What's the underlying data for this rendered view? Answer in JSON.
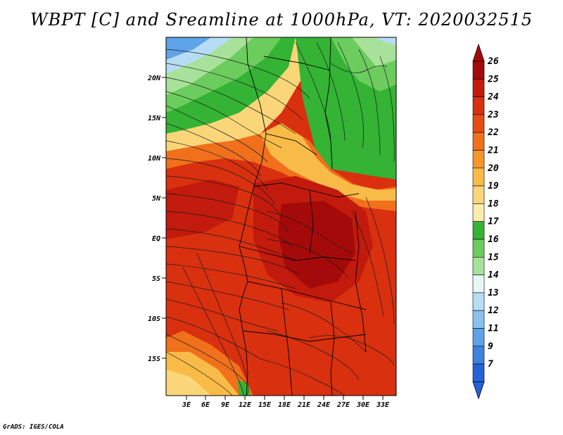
{
  "title": "WBPT [C] and Sreamline at 1000hPa, VT: 2020032515",
  "footer": "GrADS: IGES/COLA",
  "map": {
    "lat_labels": [
      "20N",
      "15N",
      "10N",
      "5N",
      "EQ",
      "5S",
      "10S",
      "15S"
    ],
    "lon_labels": [
      "3E",
      "6E",
      "9E",
      "12E",
      "15E",
      "18E",
      "21E",
      "24E",
      "27E",
      "30E",
      "33E"
    ]
  },
  "colorbar": {
    "labels": [
      "26",
      "25",
      "24",
      "23",
      "22",
      "21",
      "20",
      "19",
      "18",
      "17",
      "16",
      "15",
      "14",
      "13",
      "12",
      "11",
      "9",
      "7"
    ],
    "colors": [
      "#a50a0a",
      "#c21a0c",
      "#d9300f",
      "#e64b14",
      "#f0701c",
      "#f5962a",
      "#f8bb48",
      "#fad679",
      "#fbedae",
      "#34b335",
      "#6ccc5e",
      "#a8e29a",
      "#e6f7f5",
      "#b7dcf5",
      "#8ac2ef",
      "#5ea3e8",
      "#3f82de",
      "#2562d6"
    ]
  }
}
